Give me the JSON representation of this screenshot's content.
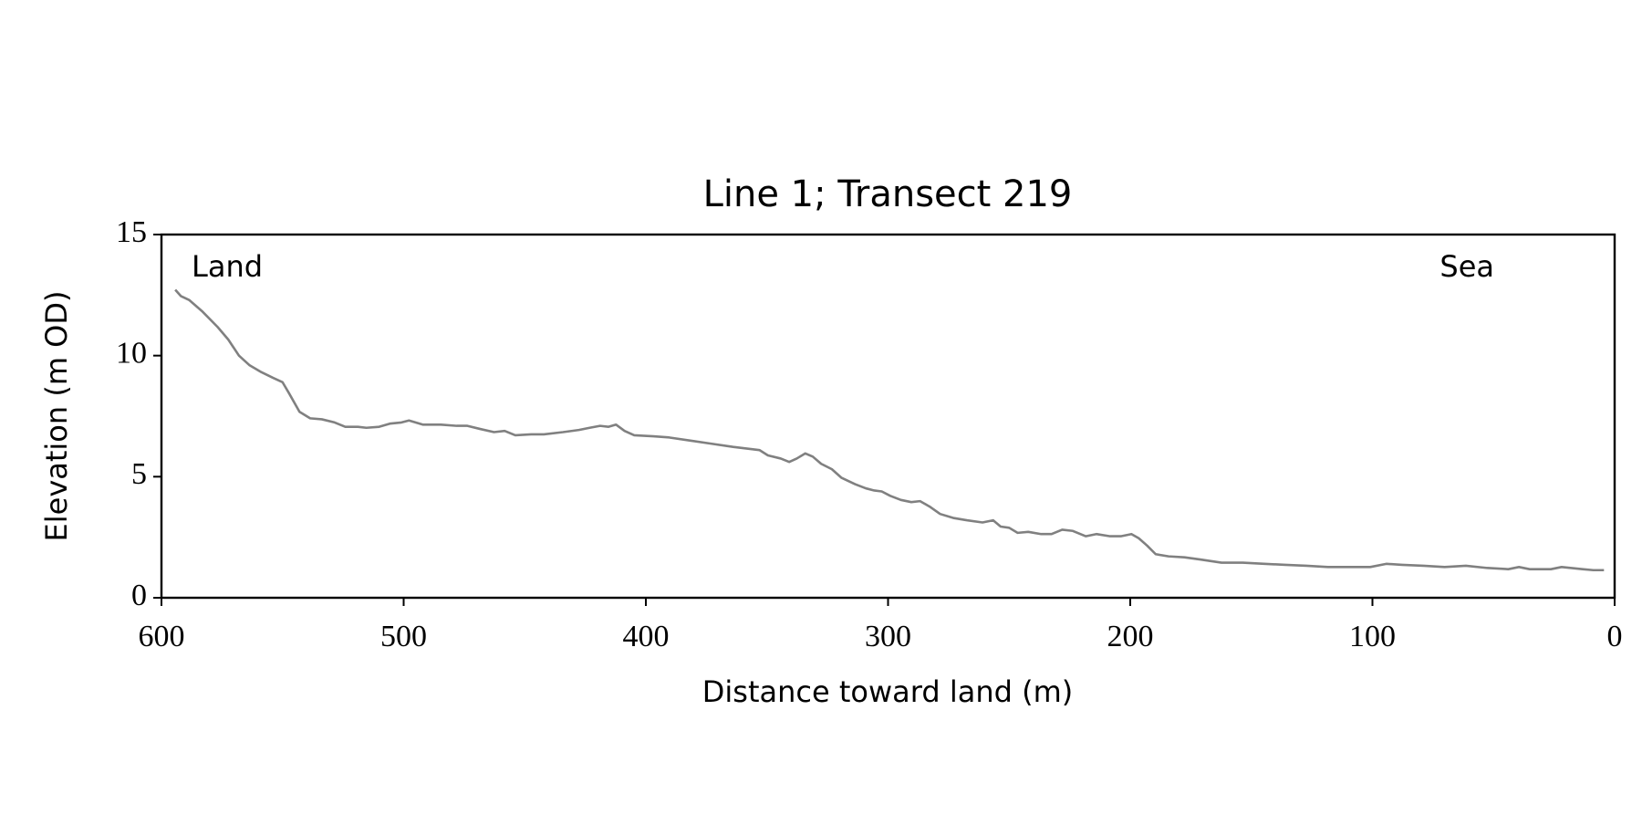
{
  "chart_data": {
    "type": "line",
    "title": "Line 1; Transect 219",
    "x_label": "Distance toward land (m)",
    "y_label": "Elevation (m OD)",
    "annotations": [
      "Land",
      "Sea"
    ],
    "xlim": [
      600,
      0
    ],
    "ylim": [
      0,
      15
    ],
    "xticks": [
      600,
      500,
      400,
      300,
      200,
      100,
      0
    ],
    "yticks": [
      0,
      5,
      10,
      15
    ],
    "grid": false,
    "x": [
      594.3,
      592,
      588.6,
      583.3,
      576.8,
      572.4,
      568,
      563.6,
      559.2,
      553.9,
      550,
      547.4,
      543,
      538.6,
      533.8,
      528.5,
      524.1,
      518.9,
      515.4,
      510.1,
      505.7,
      500.9,
      497.8,
      492.1,
      484.6,
      478.1,
      473.7,
      468.4,
      462.7,
      458.3,
      453.9,
      447.4,
      442.1,
      434.2,
      427.6,
      423.2,
      418.9,
      415.4,
      412.3,
      408.8,
      404.8,
      396.9,
      390.4,
      381.6,
      372.8,
      364,
      353.1,
      349.6,
      344.3,
      340.8,
      337.7,
      334.2,
      331.1,
      327.6,
      323.2,
      319.3,
      313.6,
      309.2,
      305.7,
      302.6,
      299.1,
      294.7,
      290.4,
      286.8,
      282.9,
      278.5,
      272.8,
      267.5,
      261,
      256.6,
      253.5,
      250,
      246.5,
      242.1,
      236.8,
      232.5,
      228.1,
      223.7,
      218.4,
      214,
      208.3,
      203.9,
      199.5,
      196.5,
      193,
      189.5,
      184.2,
      177.6,
      171.1,
      162.3,
      153.5,
      144.7,
      135.9,
      127.2,
      118.4,
      109.6,
      100.9,
      94.3,
      87.7,
      78.9,
      70.2,
      61.4,
      52.6,
      43.9,
      39.5,
      35.1,
      26.3,
      21.9,
      13.2,
      8.8,
      4.4
    ],
    "series": [
      {
        "name": "Elevation",
        "color": "#808080",
        "values": [
          12.72,
          12.46,
          12.3,
          11.84,
          11.18,
          10.66,
          10.0,
          9.6,
          9.34,
          9.08,
          8.9,
          8.46,
          7.68,
          7.41,
          7.37,
          7.24,
          7.06,
          7.06,
          7.02,
          7.06,
          7.19,
          7.24,
          7.32,
          7.15,
          7.15,
          7.1,
          7.1,
          6.97,
          6.84,
          6.89,
          6.71,
          6.75,
          6.75,
          6.84,
          6.93,
          7.02,
          7.1,
          7.06,
          7.15,
          6.89,
          6.71,
          6.67,
          6.62,
          6.49,
          6.36,
          6.23,
          6.1,
          5.88,
          5.75,
          5.61,
          5.75,
          5.96,
          5.83,
          5.53,
          5.31,
          4.96,
          4.69,
          4.52,
          4.43,
          4.39,
          4.21,
          4.04,
          3.95,
          3.99,
          3.77,
          3.46,
          3.29,
          3.2,
          3.11,
          3.2,
          2.94,
          2.89,
          2.68,
          2.72,
          2.63,
          2.63,
          2.81,
          2.76,
          2.54,
          2.63,
          2.54,
          2.54,
          2.63,
          2.46,
          2.15,
          1.8,
          1.71,
          1.67,
          1.58,
          1.45,
          1.45,
          1.4,
          1.36,
          1.32,
          1.27,
          1.27,
          1.27,
          1.4,
          1.36,
          1.32,
          1.27,
          1.32,
          1.23,
          1.18,
          1.27,
          1.18,
          1.18,
          1.27,
          1.18,
          1.14,
          1.14
        ]
      }
    ]
  }
}
